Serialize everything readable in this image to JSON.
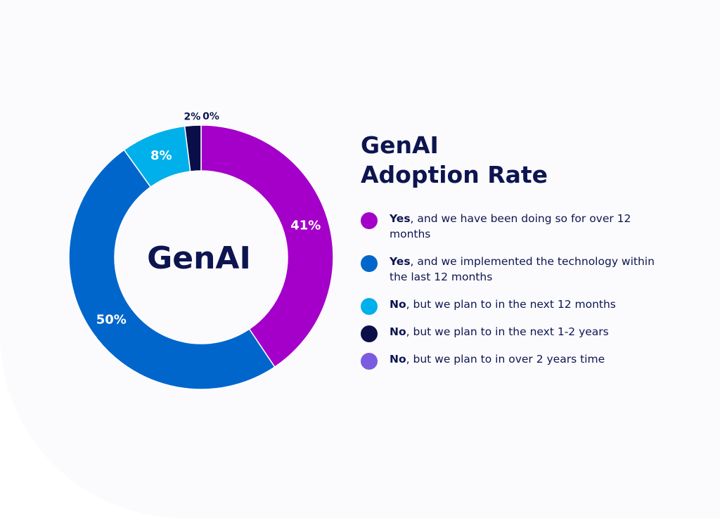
{
  "chart_data": {
    "type": "pie",
    "title": "GenAI Adoption Rate",
    "center_label": "GenAI",
    "slices": [
      {
        "value": 41,
        "label": "41%",
        "color": "#a400c9"
      },
      {
        "value": 50,
        "label": "50%",
        "color": "#0066cc"
      },
      {
        "value": 8,
        "label": "8%",
        "color": "#00b0ea"
      },
      {
        "value": 2,
        "label": "2%",
        "color": "#0a0f4a"
      },
      {
        "value": 0,
        "label": "0%",
        "color": "#7b5ce0"
      }
    ],
    "legend_placement": "right"
  },
  "legend": [
    {
      "lead": "Yes",
      "text": ", and we have been doing so for over 12 months",
      "color": "#a400c9"
    },
    {
      "lead": "Yes",
      "text": ", and we implemented the technology within the last 12 months",
      "color": "#0066cc"
    },
    {
      "lead": "No",
      "text": ", but we plan to in the next 12 months",
      "color": "#00b0ea"
    },
    {
      "lead": "No",
      "text": ", but we plan to in the next 1-2 years",
      "color": "#0a0f4a"
    },
    {
      "lead": "No",
      "text": ", but we plan to in over 2 years time",
      "color": "#7b5ce0"
    }
  ],
  "title_lines": [
    "GenAI",
    "Adoption Rate"
  ]
}
